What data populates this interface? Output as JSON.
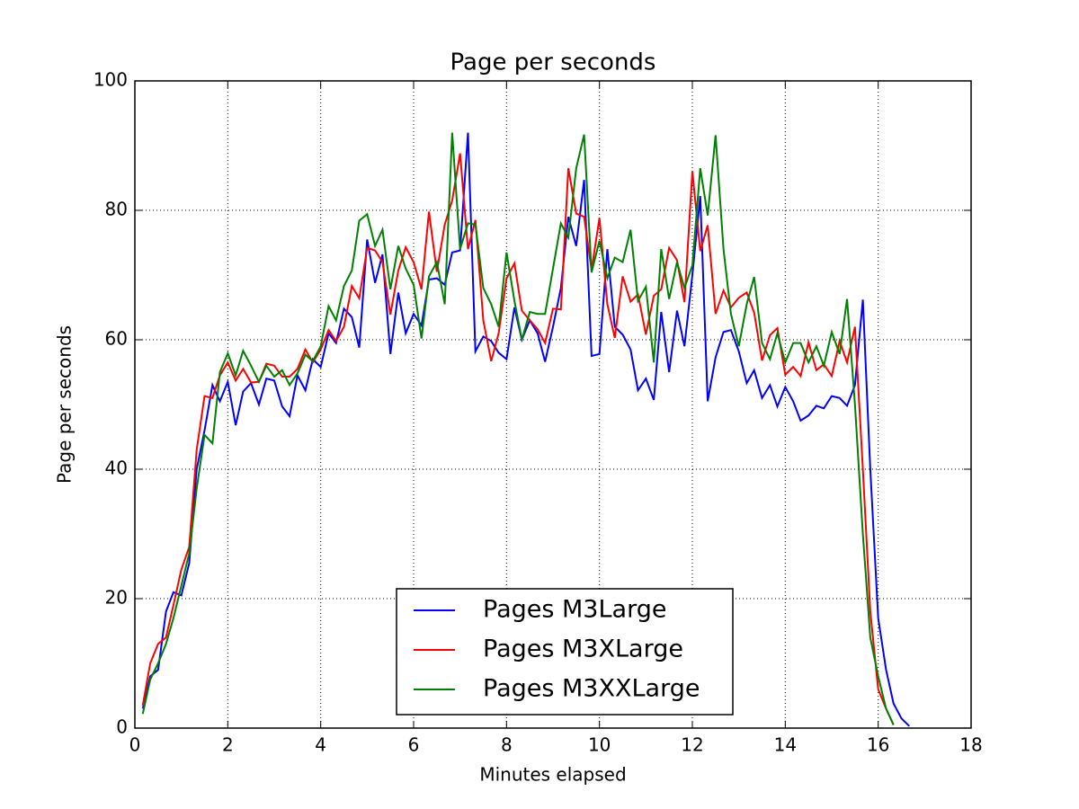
{
  "chart_data": {
    "type": "line",
    "title": "Page per seconds",
    "x_label": "Minutes elapsed",
    "y_label": "Page per seconds",
    "x": [
      0.17,
      0.33,
      0.5,
      0.67,
      0.83,
      1,
      1.17,
      1.33,
      1.5,
      1.67,
      1.83,
      2,
      2.17,
      2.33,
      2.5,
      2.67,
      2.83,
      3,
      3.17,
      3.33,
      3.5,
      3.67,
      3.83,
      4,
      4.17,
      4.33,
      4.5,
      4.67,
      4.83,
      5,
      5.17,
      5.33,
      5.5,
      5.67,
      5.83,
      6,
      6.17,
      6.33,
      6.5,
      6.67,
      6.83,
      7,
      7.17,
      7.33,
      7.5,
      7.67,
      7.83,
      8,
      8.17,
      8.33,
      8.5,
      8.67,
      8.83,
      9,
      9.17,
      9.33,
      9.5,
      9.67,
      9.83,
      10,
      10.17,
      10.33,
      10.5,
      10.67,
      10.83,
      11,
      11.17,
      11.33,
      11.5,
      11.67,
      11.83,
      12,
      12.17,
      12.33,
      12.5,
      12.67,
      12.83,
      13,
      13.17,
      13.33,
      13.5,
      13.67,
      13.83,
      14,
      14.17,
      14.33,
      14.5,
      14.67,
      14.83,
      15,
      15.17,
      15.33,
      15.5,
      15.67,
      15.83,
      16,
      16.17,
      16.33,
      16.5,
      16.67
    ],
    "series": [
      {
        "name": "Pages M3Large",
        "color": "#0000ff",
        "values": [
          3,
          8,
          9,
          18,
          21,
          20.5,
          25.5,
          40,
          46,
          53,
          50.5,
          53.5,
          46.8,
          52,
          53.3,
          50,
          54,
          53.7,
          49.7,
          48.2,
          54.5,
          52.2,
          57,
          55.8,
          61,
          59.5,
          64.8,
          63.5,
          58.8,
          75.5,
          68.8,
          73.2,
          57.8,
          67.3,
          61,
          64,
          62.2,
          69.3,
          69.5,
          68.5,
          73.5,
          73.8,
          92,
          58.2,
          60.5,
          59.8,
          58,
          57,
          65,
          60,
          63,
          61,
          56.6,
          62,
          68,
          79,
          74.5,
          84.7,
          57.5,
          57.8,
          74,
          62,
          60.8,
          58.5,
          52.2,
          54,
          50.7,
          64.3,
          55,
          64.5,
          59,
          70,
          82.2,
          50.5,
          57.3,
          61.2,
          61.5,
          58.2,
          53.3,
          55.3,
          51,
          53,
          49.7,
          52.7,
          50.5,
          47.5,
          48.3,
          49.8,
          49.4,
          51.3,
          51,
          49.8,
          53,
          66.2,
          40,
          17,
          9,
          3.8,
          1.5,
          0.3
        ]
      },
      {
        "name": "Pages M3XLarge",
        "color": "#ff0000",
        "values": [
          3.5,
          10,
          13,
          14,
          19,
          24.5,
          28,
          43,
          51.3,
          51,
          54.5,
          56.5,
          53.7,
          55.5,
          53.4,
          53.5,
          56.3,
          56,
          54.3,
          54.3,
          55.5,
          58.5,
          56.5,
          58.5,
          61.5,
          59.8,
          62,
          68.3,
          66.4,
          74.2,
          73.8,
          72,
          63.9,
          70.7,
          74.3,
          72,
          67.8,
          79.8,
          70.5,
          77.8,
          81.5,
          88.8,
          74,
          78.5,
          63,
          56.7,
          61,
          69.5,
          71.8,
          64.5,
          63,
          61.6,
          59.5,
          64.8,
          64.7,
          86.5,
          79.5,
          79,
          70.8,
          78.8,
          65.5,
          60.3,
          69.8,
          65.9,
          67,
          60.8,
          66.8,
          67.8,
          74.2,
          72.3,
          65.8,
          86,
          73.7,
          77.7,
          64,
          67.6,
          65,
          66.5,
          67.3,
          64.2,
          56.8,
          60.7,
          61.8,
          54.6,
          55.8,
          54.4,
          59.6,
          55.3,
          56.2,
          54.4,
          59.8,
          56.5,
          62,
          40,
          18,
          6,
          3,
          0.5,
          null,
          null
        ]
      },
      {
        "name": "Pages M3XXLarge",
        "color": "#008000",
        "values": [
          2.2,
          7.5,
          10,
          13,
          17,
          22,
          27,
          37,
          45.3,
          44,
          55,
          57.9,
          54.5,
          58.3,
          56,
          53.5,
          56,
          54.3,
          55.3,
          53,
          54.8,
          57.7,
          56.7,
          59,
          65.2,
          63,
          68.3,
          70.7,
          78.4,
          79.4,
          74.5,
          77,
          67.8,
          74.5,
          71,
          68.5,
          60.2,
          69.8,
          72,
          65.5,
          92,
          74,
          78,
          77.8,
          68,
          65.5,
          62,
          73.5,
          66,
          60,
          64.3,
          64,
          64,
          71,
          78,
          75.8,
          86.5,
          91.7,
          70.4,
          75.3,
          69.5,
          72.7,
          72,
          77,
          66,
          68.2,
          56.5,
          74,
          66.3,
          72,
          68,
          71.5,
          86.5,
          79.2,
          91.6,
          74,
          64,
          59,
          65.5,
          69.7,
          59.5,
          57,
          61,
          56.5,
          59.5,
          59.5,
          56.5,
          59,
          56,
          61.2,
          57.8,
          66.3,
          50,
          30,
          14,
          8,
          3,
          0.5,
          null,
          null
        ]
      }
    ],
    "xlim": [
      0,
      18
    ],
    "xticks": [
      0,
      2,
      4,
      6,
      8,
      10,
      12,
      14,
      16,
      18
    ],
    "ylim": [
      0,
      100
    ],
    "yticks": [
      0,
      20,
      40,
      60,
      80,
      100
    ],
    "grid": true,
    "legend": "lower center"
  }
}
